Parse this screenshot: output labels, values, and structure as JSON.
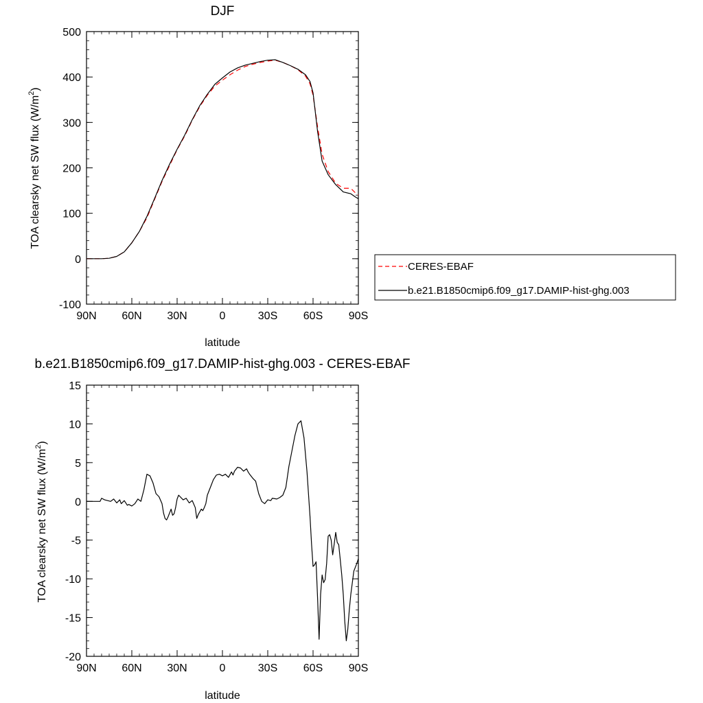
{
  "colors": {
    "model": "#000000",
    "obs": "#ff0000",
    "background": "#ffffff"
  },
  "chart_data": [
    {
      "type": "line",
      "title": "DJF",
      "xlabel": "latitude",
      "ylabel_main": "TOA clearsky net SW flux (W/m",
      "ylabel_sup": "2",
      "ylabel_close": ")",
      "xlim": [
        90,
        -90
      ],
      "ylim": [
        -100,
        500
      ],
      "x_ticks": [
        90,
        60,
        30,
        0,
        -30,
        -60,
        -90
      ],
      "x_tick_labels": [
        "90N",
        "60N",
        "30N",
        "0",
        "30S",
        "60S",
        "90S"
      ],
      "y_ticks": [
        -100,
        0,
        100,
        200,
        300,
        400,
        500
      ],
      "y_tick_labels": [
        "-100",
        "0",
        "100",
        "200",
        "300",
        "400",
        "500"
      ],
      "legend": {
        "position": "right"
      },
      "series": [
        {
          "name": "CERES-EBAF",
          "style": "dashed",
          "x": [
            90,
            85,
            80,
            75,
            70,
            65,
            60,
            55,
            50,
            45,
            40,
            35,
            30,
            25,
            20,
            15,
            10,
            5,
            0,
            -5,
            -10,
            -15,
            -20,
            -25,
            -30,
            -35,
            -40,
            -45,
            -50,
            -55,
            -58,
            -60,
            -63,
            -66,
            -70,
            -75,
            -80,
            -85,
            -88,
            -90
          ],
          "y": [
            0,
            0,
            0,
            1,
            5,
            15,
            35,
            60,
            90,
            130,
            170,
            205,
            240,
            270,
            305,
            335,
            360,
            380,
            393,
            405,
            415,
            423,
            428,
            432,
            435,
            437,
            432,
            425,
            416,
            402,
            385,
            360,
            290,
            230,
            192,
            166,
            155,
            155,
            145,
            140
          ]
        },
        {
          "name": "b.e21.B1850cmip6.f09_g17.DAMIP-hist-ghg.003",
          "style": "solid",
          "x": [
            90,
            85,
            80,
            75,
            70,
            65,
            60,
            55,
            50,
            45,
            40,
            35,
            30,
            25,
            20,
            15,
            10,
            5,
            0,
            -5,
            -10,
            -15,
            -20,
            -25,
            -30,
            -35,
            -40,
            -45,
            -50,
            -55,
            -58,
            -60,
            -63,
            -66,
            -70,
            -75,
            -80,
            -85,
            -88,
            -90
          ],
          "y": [
            0,
            0,
            0,
            1,
            5,
            15,
            35,
            60,
            93,
            132,
            172,
            208,
            241,
            272,
            306,
            337,
            362,
            384,
            398,
            411,
            420,
            426,
            430,
            434,
            437,
            438,
            432,
            425,
            417,
            405,
            390,
            365,
            280,
            215,
            185,
            163,
            147,
            143,
            136,
            132
          ]
        }
      ]
    },
    {
      "type": "line",
      "title": "b.e21.B1850cmip6.f09_g17.DAMIP-hist-ghg.003 - CERES-EBAF",
      "xlabel": "latitude",
      "ylabel_main": "TOA clearsky net SW flux (W/m",
      "ylabel_sup": "2",
      "ylabel_close": ")",
      "xlim": [
        90,
        -90
      ],
      "ylim": [
        -20,
        15
      ],
      "x_ticks": [
        90,
        60,
        30,
        0,
        -30,
        -60,
        -90
      ],
      "x_tick_labels": [
        "90N",
        "60N",
        "30N",
        "0",
        "30S",
        "60S",
        "90S"
      ],
      "y_ticks": [
        -20,
        -15,
        -10,
        -5,
        0,
        5,
        10,
        15
      ],
      "y_tick_labels": [
        "-20",
        "-15",
        "-10",
        "-5",
        "0",
        "5",
        "10",
        "15"
      ],
      "series": [
        {
          "style": "solid",
          "x": [
            90,
            81,
            80,
            78,
            74,
            72,
            70,
            68,
            67,
            65,
            63,
            62,
            60,
            58,
            56,
            54,
            52,
            50,
            48,
            46,
            44,
            42,
            40,
            39,
            38,
            37,
            36,
            34,
            33,
            32,
            31,
            30,
            29,
            26,
            24,
            22,
            20,
            18,
            17,
            16,
            14,
            13,
            12,
            11,
            10,
            8,
            6,
            4,
            2,
            0,
            -2,
            -4,
            -6,
            -7,
            -8,
            -10,
            -12,
            -14,
            -16,
            -17,
            -18,
            -20,
            -22,
            -24,
            -26,
            -28,
            -30,
            -32,
            -33,
            -36,
            -38,
            -40,
            -42,
            -44,
            -46,
            -48,
            -50,
            -52,
            -54,
            -56,
            -58,
            -59,
            -60,
            -61,
            -62,
            -63,
            -64,
            -65,
            -66,
            -67,
            -68,
            -69,
            -70,
            -71,
            -72,
            -73,
            -74,
            -75,
            -76,
            -77,
            -78,
            -79,
            -80,
            -81,
            -82,
            -83,
            -84,
            -85,
            -86,
            -87,
            -88,
            -89,
            -90
          ],
          "y": [
            0,
            0,
            0.4,
            0.2,
            0,
            0.3,
            -0.2,
            0.2,
            -0.3,
            0.1,
            -0.5,
            -0.4,
            -0.6,
            -0.3,
            0.3,
            0,
            1.5,
            3.5,
            3.3,
            2.4,
            1,
            0.6,
            -0.3,
            -1.5,
            -2.2,
            -2.4,
            -2,
            -1,
            -1.8,
            -1.6,
            -0.8,
            0.3,
            0.8,
            0.2,
            0.4,
            -0.2,
            0.1,
            -0.8,
            -2.2,
            -1.7,
            -1,
            -1.2,
            -0.8,
            -0.3,
            0.8,
            1.8,
            2.8,
            3.4,
            3.5,
            3.3,
            3.5,
            3.1,
            3.8,
            3.4,
            3.9,
            4.4,
            4.3,
            3.9,
            4.2,
            3.8,
            3.5,
            3.0,
            2.6,
            1.0,
            0,
            -0.3,
            0.2,
            0.1,
            0.4,
            0.3,
            0.5,
            0.8,
            1.8,
            4.5,
            6.5,
            8.5,
            10.0,
            10.4,
            8.2,
            3.8,
            -2.0,
            -5.5,
            -8.4,
            -8.2,
            -7.8,
            -12.5,
            -17.8,
            -12.0,
            -9.5,
            -10.5,
            -10.1,
            -8.0,
            -4.5,
            -4.3,
            -5.0,
            -6.9,
            -5.5,
            -4.0,
            -5.3,
            -5.6,
            -7.5,
            -9.5,
            -12.0,
            -15.5,
            -18.0,
            -16.5,
            -14.0,
            -12.0,
            -10.5,
            -9.0,
            -8.5,
            -8.0,
            -7.4
          ]
        }
      ]
    }
  ]
}
